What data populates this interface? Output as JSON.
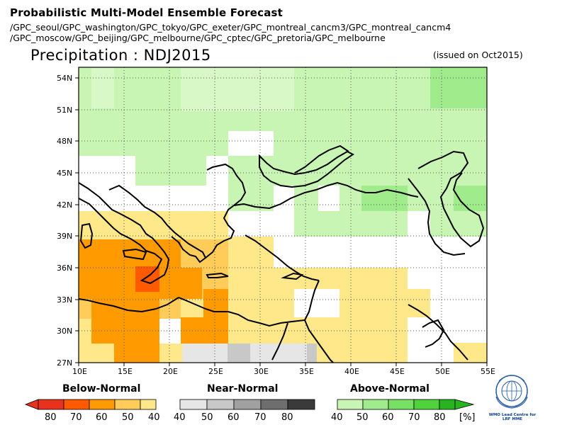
{
  "header": {
    "title": "Probabilistic Multi-Model Ensemble Forecast",
    "models_line1": "/GPC_seoul/GPC_washington/GPC_tokyo/GPC_exeter/GPC_montreal_cancm3/GPC_montreal_cancm4",
    "models_line2": "/GPC_moscow/GPC_beijing/GPC_melbourne/GPC_cptec/GPC_pretoria/GPC_melbourne"
  },
  "map": {
    "variable_title": "Precipitation : NDJ2015",
    "issued": "(issued on Oct2015)",
    "lat_labels": [
      "54N",
      "51N",
      "48N",
      "45N",
      "42N",
      "39N",
      "36N",
      "33N",
      "30N",
      "27N"
    ],
    "lon_labels": [
      "10E",
      "15E",
      "20E",
      "25E",
      "30E",
      "35E",
      "40E",
      "45E",
      "50E",
      "55E"
    ]
  },
  "legend": {
    "below": {
      "title": "Below-Normal",
      "labels": [
        "80",
        "70",
        "60",
        "50",
        "40"
      ],
      "colors": [
        "#e8321e",
        "#ff5a00",
        "#ff9a00",
        "#ffcc5a",
        "#ffe88a"
      ]
    },
    "near": {
      "title": "Near-Normal",
      "labels": [
        "40",
        "50",
        "60",
        "70",
        "80"
      ],
      "colors": [
        "#e6e6e6",
        "#c8c8c8",
        "#a0a0a0",
        "#6e6e6e",
        "#3a3a3a"
      ]
    },
    "above": {
      "title": "Above-Normal",
      "labels": [
        "40",
        "50",
        "60",
        "70",
        "80"
      ],
      "colors": [
        "#c8f5b4",
        "#a0eb8c",
        "#78e164",
        "#50d23c",
        "#28b41e"
      ]
    },
    "unit": "[%]"
  },
  "logo": {
    "name": "wmo-logo-icon",
    "caption": "WMO Lead Centre for LRF MME"
  }
}
